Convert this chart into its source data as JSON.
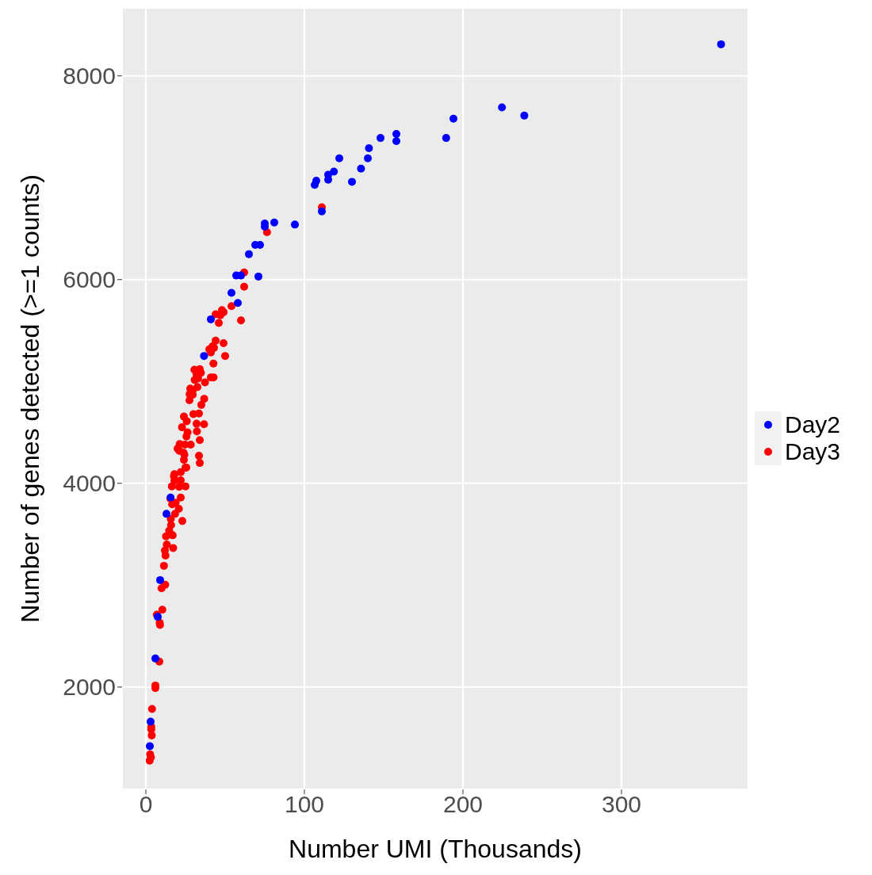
{
  "chart_data": {
    "type": "scatter",
    "xlabel": "Number UMI (Thousands)",
    "ylabel": "Number of genes detected (>=1 counts)",
    "xlim": [
      -15,
      380
    ],
    "ylim": [
      995,
      8667
    ],
    "xticks": [
      0,
      100,
      200,
      300
    ],
    "yticks": [
      2000,
      4000,
      6000,
      8000
    ],
    "grid": true,
    "legend": "right",
    "marker": "circle",
    "series": [
      {
        "name": "Day2",
        "color": "#0000ff",
        "x": [
          3,
          2.5,
          6,
          7.5,
          9,
          13,
          15.6,
          36.7,
          41,
          57,
          54,
          58,
          60,
          71,
          65,
          69,
          72,
          75,
          75,
          81,
          94,
          106.5,
          107.5,
          111,
          115,
          115,
          118.6,
          122,
          130,
          135.7,
          140,
          140.7,
          148,
          158,
          158,
          189.4,
          194,
          224.6,
          238.7,
          362.8
        ],
        "values": [
          1660,
          1420,
          2280,
          2690,
          3050,
          3700,
          3860,
          5250,
          5610,
          6040,
          5870,
          5770,
          6040,
          6030,
          6250,
          6340,
          6340,
          6550,
          6520,
          6560,
          6540,
          6930,
          6970,
          6670,
          6980,
          7030,
          7060,
          7190,
          6960,
          7090,
          7190,
          7290,
          7390,
          7360,
          7430,
          7390,
          7580,
          7690,
          7610,
          8310
        ]
      },
      {
        "name": "Day3",
        "color": "#ff0000",
        "x": [
          2.4,
          3.2,
          2.7,
          3.7,
          3.4,
          3.4,
          3.9,
          6,
          6,
          8.5,
          8.7,
          8.9,
          6.9,
          10.4,
          9.9,
          12.2,
          11.4,
          12.4,
          12,
          17.2,
          13.2,
          12.7,
          16.9,
          14.7,
          15.9,
          23,
          15.7,
          18.4,
          20.8,
          16.6,
          18.8,
          15.4,
          22,
          21,
          25,
          16.4,
          22,
          18,
          17.7,
          22,
          25,
          34,
          33.5,
          24,
          24.3,
          62,
          62,
          54,
          60,
          44,
          48,
          49,
          47,
          46,
          44,
          49,
          42,
          40,
          41,
          43,
          50,
          42.6,
          30.6,
          34,
          34.7,
          32,
          30.8,
          33,
          41,
          42.7,
          37.3,
          28,
          32.5,
          29.6,
          27.6,
          29.6,
          27.5,
          36.8,
          35,
          24,
          30,
          33.5,
          25.8,
          32,
          36.7,
          22.8,
          26.3,
          25.6,
          32.2,
          34,
          21.3,
          24.6,
          28.3,
          20,
          21.1,
          23.8,
          25.5,
          18,
          111,
          76.4
        ],
        "values": [
          1278,
          1310,
          1340,
          1525,
          1585,
          1610,
          1785,
          2015,
          1990,
          2250,
          2630,
          2610,
          2710,
          2760,
          2970,
          3005,
          3190,
          3290,
          3340,
          3365,
          3400,
          3480,
          3490,
          3535,
          3590,
          3630,
          3650,
          3700,
          3750,
          3795,
          3810,
          3850,
          3860,
          3965,
          3970,
          3970,
          4030,
          4025,
          4070,
          4110,
          4155,
          4200,
          4270,
          4230,
          4280,
          6070,
          5930,
          5740,
          5600,
          5660,
          5700,
          5680,
          5650,
          5575,
          5400,
          5375,
          5345,
          5315,
          5285,
          5330,
          5250,
          5175,
          5115,
          5120,
          5085,
          5070,
          5015,
          5030,
          5040,
          5040,
          4990,
          4930,
          4945,
          4915,
          4875,
          4870,
          4815,
          4830,
          4770,
          4655,
          4680,
          4685,
          4610,
          4585,
          4580,
          4550,
          4500,
          4460,
          4510,
          4425,
          4385,
          4380,
          4380,
          4340,
          4320,
          4300,
          4155,
          4090,
          6710,
          6465
        ]
      }
    ]
  }
}
